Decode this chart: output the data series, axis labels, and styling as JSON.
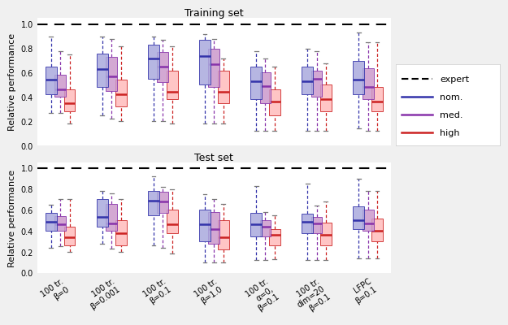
{
  "title_top": "Training set",
  "title_bottom": "Test set",
  "ylabel": "Relative performance",
  "ylim": [
    0.0,
    1.05
  ],
  "yticks": [
    0.0,
    0.2,
    0.4,
    0.6,
    0.8,
    1.0
  ],
  "group_labels": [
    "100 tr.\nβ=0",
    "100 tr.\nβ=0.001",
    "100 tr.\nβ=0.1",
    "100 tr.\nβ=1.0",
    "100 tr.\nα=0,\nβ=0.1",
    "100 tr.\ndim=20\nβ=0.1",
    "LFPC\nβ=0.1"
  ],
  "colors": {
    "nom_line": "#3333aa",
    "med_line": "#8833aa",
    "high_line": "#cc2222",
    "nom_fill": "#aaaadd",
    "med_fill": "#cc99cc",
    "high_fill": "#ffbbbb"
  },
  "training": {
    "nom": {
      "whislo": [
        0.27,
        0.25,
        0.2,
        0.18,
        0.12,
        0.12,
        0.14
      ],
      "q1": [
        0.42,
        0.48,
        0.55,
        0.5,
        0.38,
        0.42,
        0.42
      ],
      "med": [
        0.54,
        0.63,
        0.72,
        0.74,
        0.53,
        0.53,
        0.54
      ],
      "q3": [
        0.65,
        0.76,
        0.83,
        0.87,
        0.65,
        0.65,
        0.7
      ],
      "whishi": [
        0.9,
        0.9,
        0.9,
        0.92,
        0.78,
        0.8,
        0.93
      ]
    },
    "med": {
      "whislo": [
        0.27,
        0.22,
        0.2,
        0.18,
        0.12,
        0.12,
        0.12
      ],
      "q1": [
        0.4,
        0.45,
        0.52,
        0.48,
        0.35,
        0.4,
        0.38
      ],
      "med": [
        0.46,
        0.57,
        0.65,
        0.67,
        0.49,
        0.55,
        0.48
      ],
      "q3": [
        0.58,
        0.73,
        0.77,
        0.8,
        0.6,
        0.62,
        0.64
      ],
      "whishi": [
        0.78,
        0.88,
        0.87,
        0.88,
        0.72,
        0.78,
        0.85
      ]
    },
    "high": {
      "whislo": [
        0.18,
        0.2,
        0.18,
        0.18,
        0.12,
        0.12,
        0.12
      ],
      "q1": [
        0.28,
        0.32,
        0.38,
        0.35,
        0.25,
        0.28,
        0.28
      ],
      "med": [
        0.35,
        0.42,
        0.44,
        0.44,
        0.36,
        0.38,
        0.36
      ],
      "q3": [
        0.46,
        0.54,
        0.62,
        0.62,
        0.46,
        0.5,
        0.48
      ],
      "whishi": [
        0.75,
        0.82,
        0.82,
        0.72,
        0.65,
        0.68,
        0.85
      ]
    }
  },
  "test": {
    "nom": {
      "whislo": [
        0.24,
        0.28,
        0.26,
        0.1,
        0.12,
        0.12,
        0.14
      ],
      "q1": [
        0.4,
        0.44,
        0.55,
        0.3,
        0.35,
        0.38,
        0.42
      ],
      "med": [
        0.49,
        0.53,
        0.69,
        0.46,
        0.46,
        0.49,
        0.5
      ],
      "q3": [
        0.57,
        0.7,
        0.78,
        0.6,
        0.57,
        0.56,
        0.63
      ],
      "whishi": [
        0.65,
        0.78,
        0.92,
        0.75,
        0.83,
        0.85,
        0.9
      ]
    },
    "med": {
      "whislo": [
        0.25,
        0.23,
        0.24,
        0.1,
        0.12,
        0.12,
        0.14
      ],
      "q1": [
        0.4,
        0.4,
        0.57,
        0.28,
        0.35,
        0.38,
        0.4
      ],
      "med": [
        0.46,
        0.47,
        0.68,
        0.42,
        0.44,
        0.47,
        0.47
      ],
      "q3": [
        0.54,
        0.66,
        0.77,
        0.58,
        0.5,
        0.53,
        0.6
      ],
      "whishi": [
        0.7,
        0.76,
        0.82,
        0.7,
        0.58,
        0.64,
        0.78
      ]
    },
    "high": {
      "whislo": [
        0.2,
        0.2,
        0.18,
        0.1,
        0.13,
        0.12,
        0.14
      ],
      "q1": [
        0.26,
        0.26,
        0.38,
        0.22,
        0.26,
        0.26,
        0.3
      ],
      "med": [
        0.34,
        0.38,
        0.46,
        0.34,
        0.36,
        0.36,
        0.4
      ],
      "q3": [
        0.44,
        0.5,
        0.6,
        0.5,
        0.42,
        0.48,
        0.52
      ],
      "whishi": [
        0.7,
        0.7,
        0.8,
        0.66,
        0.55,
        0.68,
        0.78
      ]
    }
  },
  "legend_fontsize": 8,
  "tick_fontsize": 7,
  "title_fontsize": 9,
  "label_fontsize": 8,
  "background_color": "#f0f0f0"
}
